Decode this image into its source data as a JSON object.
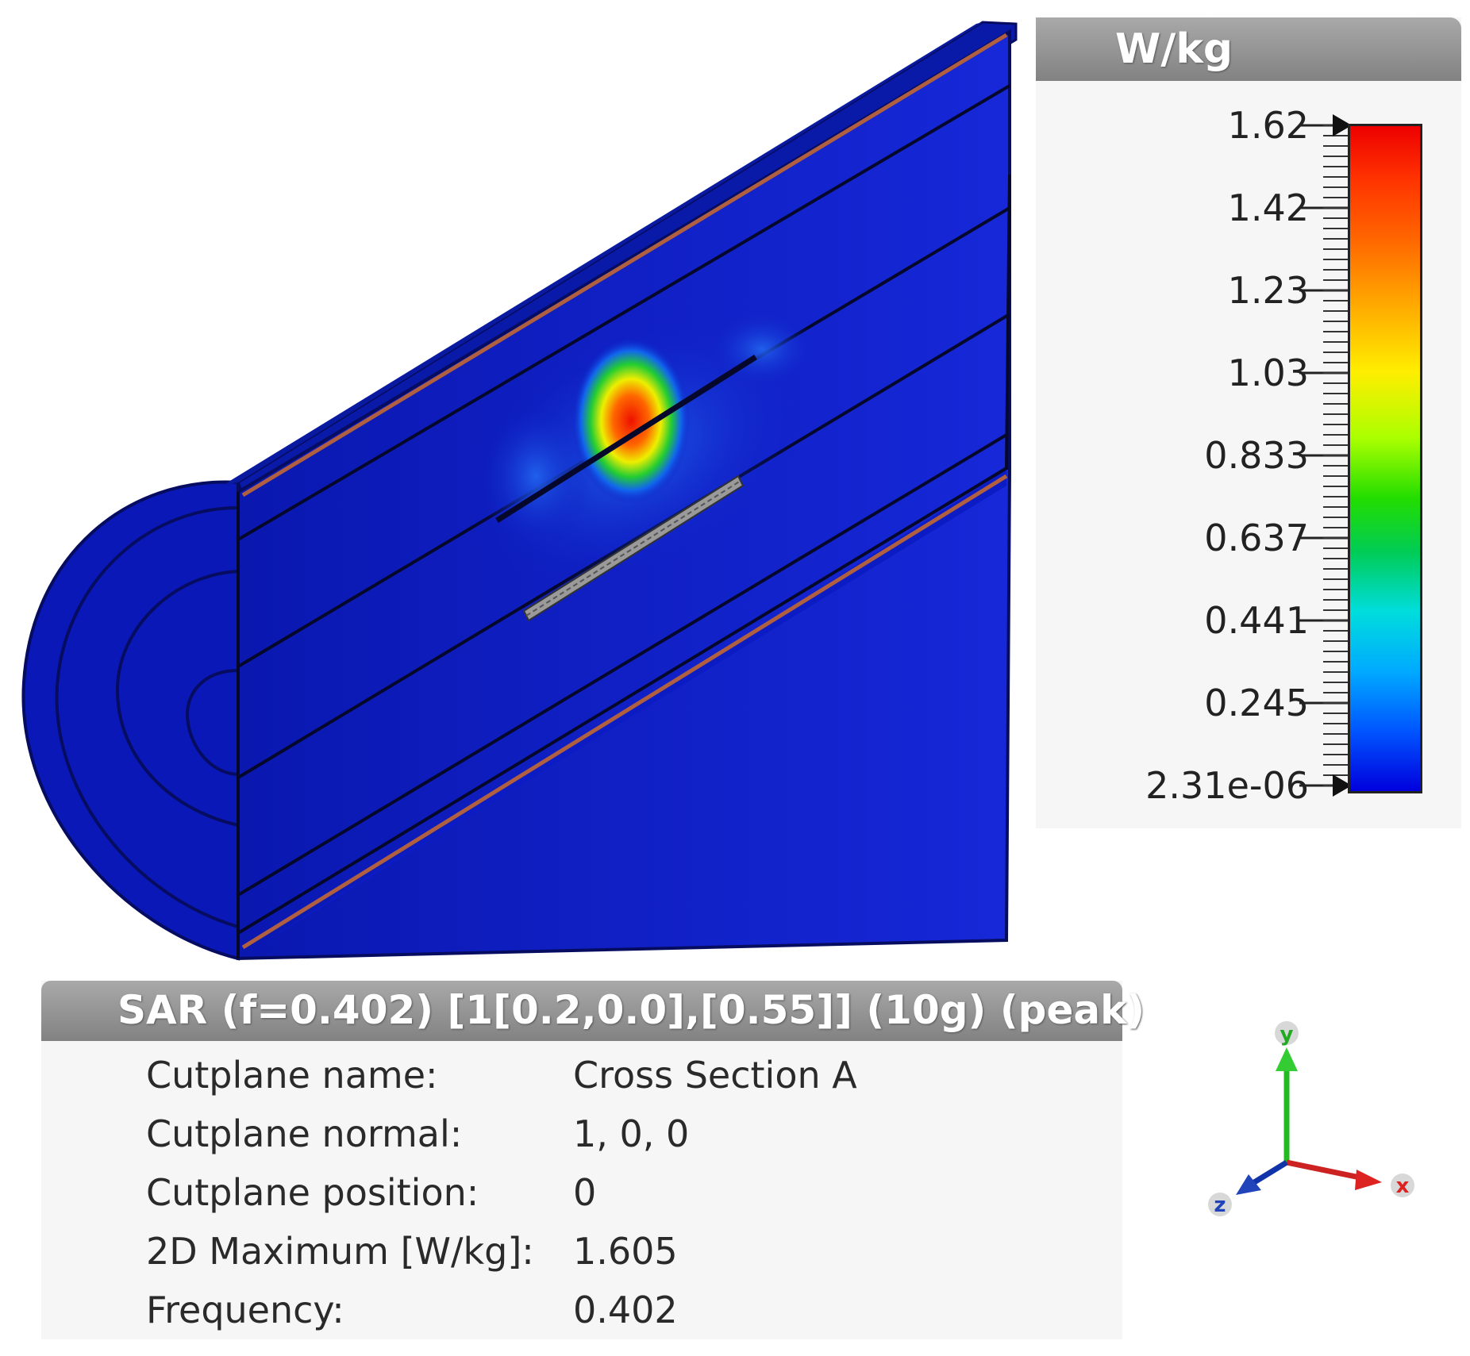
{
  "legend": {
    "unit": "W/kg",
    "ticks": [
      "1.62",
      "1.42",
      "1.23",
      "1.03",
      "0.833",
      "0.637",
      "0.441",
      "0.245",
      "2.31e-06"
    ]
  },
  "info": {
    "title": "SAR (f=0.402) [1[0.2,0.0],[0.55]] (10g) (peak)",
    "rows": [
      {
        "label": "Cutplane name:",
        "value": "Cross Section A"
      },
      {
        "label": "Cutplane normal:",
        "value": "1, 0, 0"
      },
      {
        "label": "Cutplane position:",
        "value": "0"
      },
      {
        "label": "2D Maximum [W/kg]:",
        "value": "1.605"
      },
      {
        "label": "Frequency:",
        "value": "0.402"
      }
    ]
  },
  "axes": {
    "x_label": "x",
    "y_label": "y",
    "z_label": "z"
  },
  "colors": {
    "model_blue": "#0c1cc4",
    "panel_header": "#8c8c8c",
    "hotspot": "#ee2200"
  }
}
